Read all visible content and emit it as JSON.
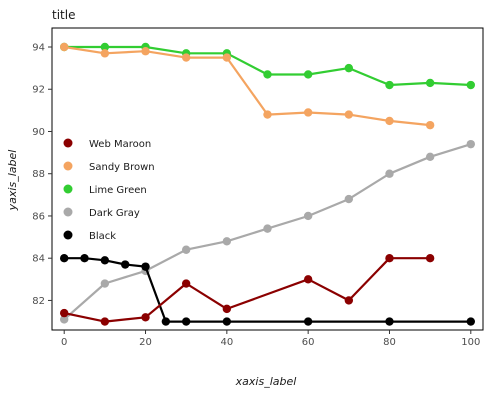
{
  "chart_data": {
    "type": "line",
    "title": "title",
    "xlabel": "xaxis_label",
    "ylabel": "yaxis_label",
    "xlim": [
      -3,
      103
    ],
    "ylim": [
      80.6,
      94.9
    ],
    "xticks": [
      0,
      20,
      40,
      60,
      80,
      100
    ],
    "yticks": [
      82,
      84,
      86,
      88,
      90,
      92,
      94
    ],
    "grid": false,
    "legend_position": "left",
    "x": [
      0,
      10,
      20,
      30,
      40,
      50,
      60,
      70,
      80,
      90,
      100
    ],
    "series": [
      {
        "name": "Web Maroon",
        "color": "#8b0000",
        "values": [
          81.4,
          81.0,
          81.2,
          82.8,
          81.6,
          83.0,
          82.0,
          84.0,
          84.0
        ],
        "x": [
          0,
          10,
          20,
          30,
          40,
          60,
          70,
          80,
          90
        ]
      },
      {
        "name": "Sandy Brown",
        "color": "#f4a460",
        "values": [
          94.0,
          93.7,
          93.8,
          93.5,
          93.5,
          90.8,
          90.9,
          90.8,
          90.5,
          90.3
        ],
        "x": [
          0,
          10,
          20,
          30,
          40,
          50,
          60,
          70,
          80,
          90
        ]
      },
      {
        "name": "Lime Green",
        "color": "#32cd32",
        "values": [
          94.0,
          94.0,
          94.0,
          93.7,
          93.7,
          92.7,
          92.7,
          93.0,
          92.2,
          92.3,
          92.2
        ]
      },
      {
        "name": "Dark Gray",
        "color": "#a9a9a9",
        "values": [
          81.1,
          82.8,
          83.4,
          84.4,
          84.8,
          85.4,
          86.0,
          86.8,
          88.0,
          88.8,
          89.4
        ]
      },
      {
        "name": "Black",
        "color": "#000000",
        "values": [
          84.0,
          84.0,
          83.9,
          83.7,
          83.6,
          81.0,
          81.0,
          81.0,
          81.0,
          81.0,
          81.0
        ],
        "x": [
          0,
          5,
          10,
          15,
          20,
          25,
          30,
          40,
          60,
          80,
          100
        ]
      }
    ]
  }
}
